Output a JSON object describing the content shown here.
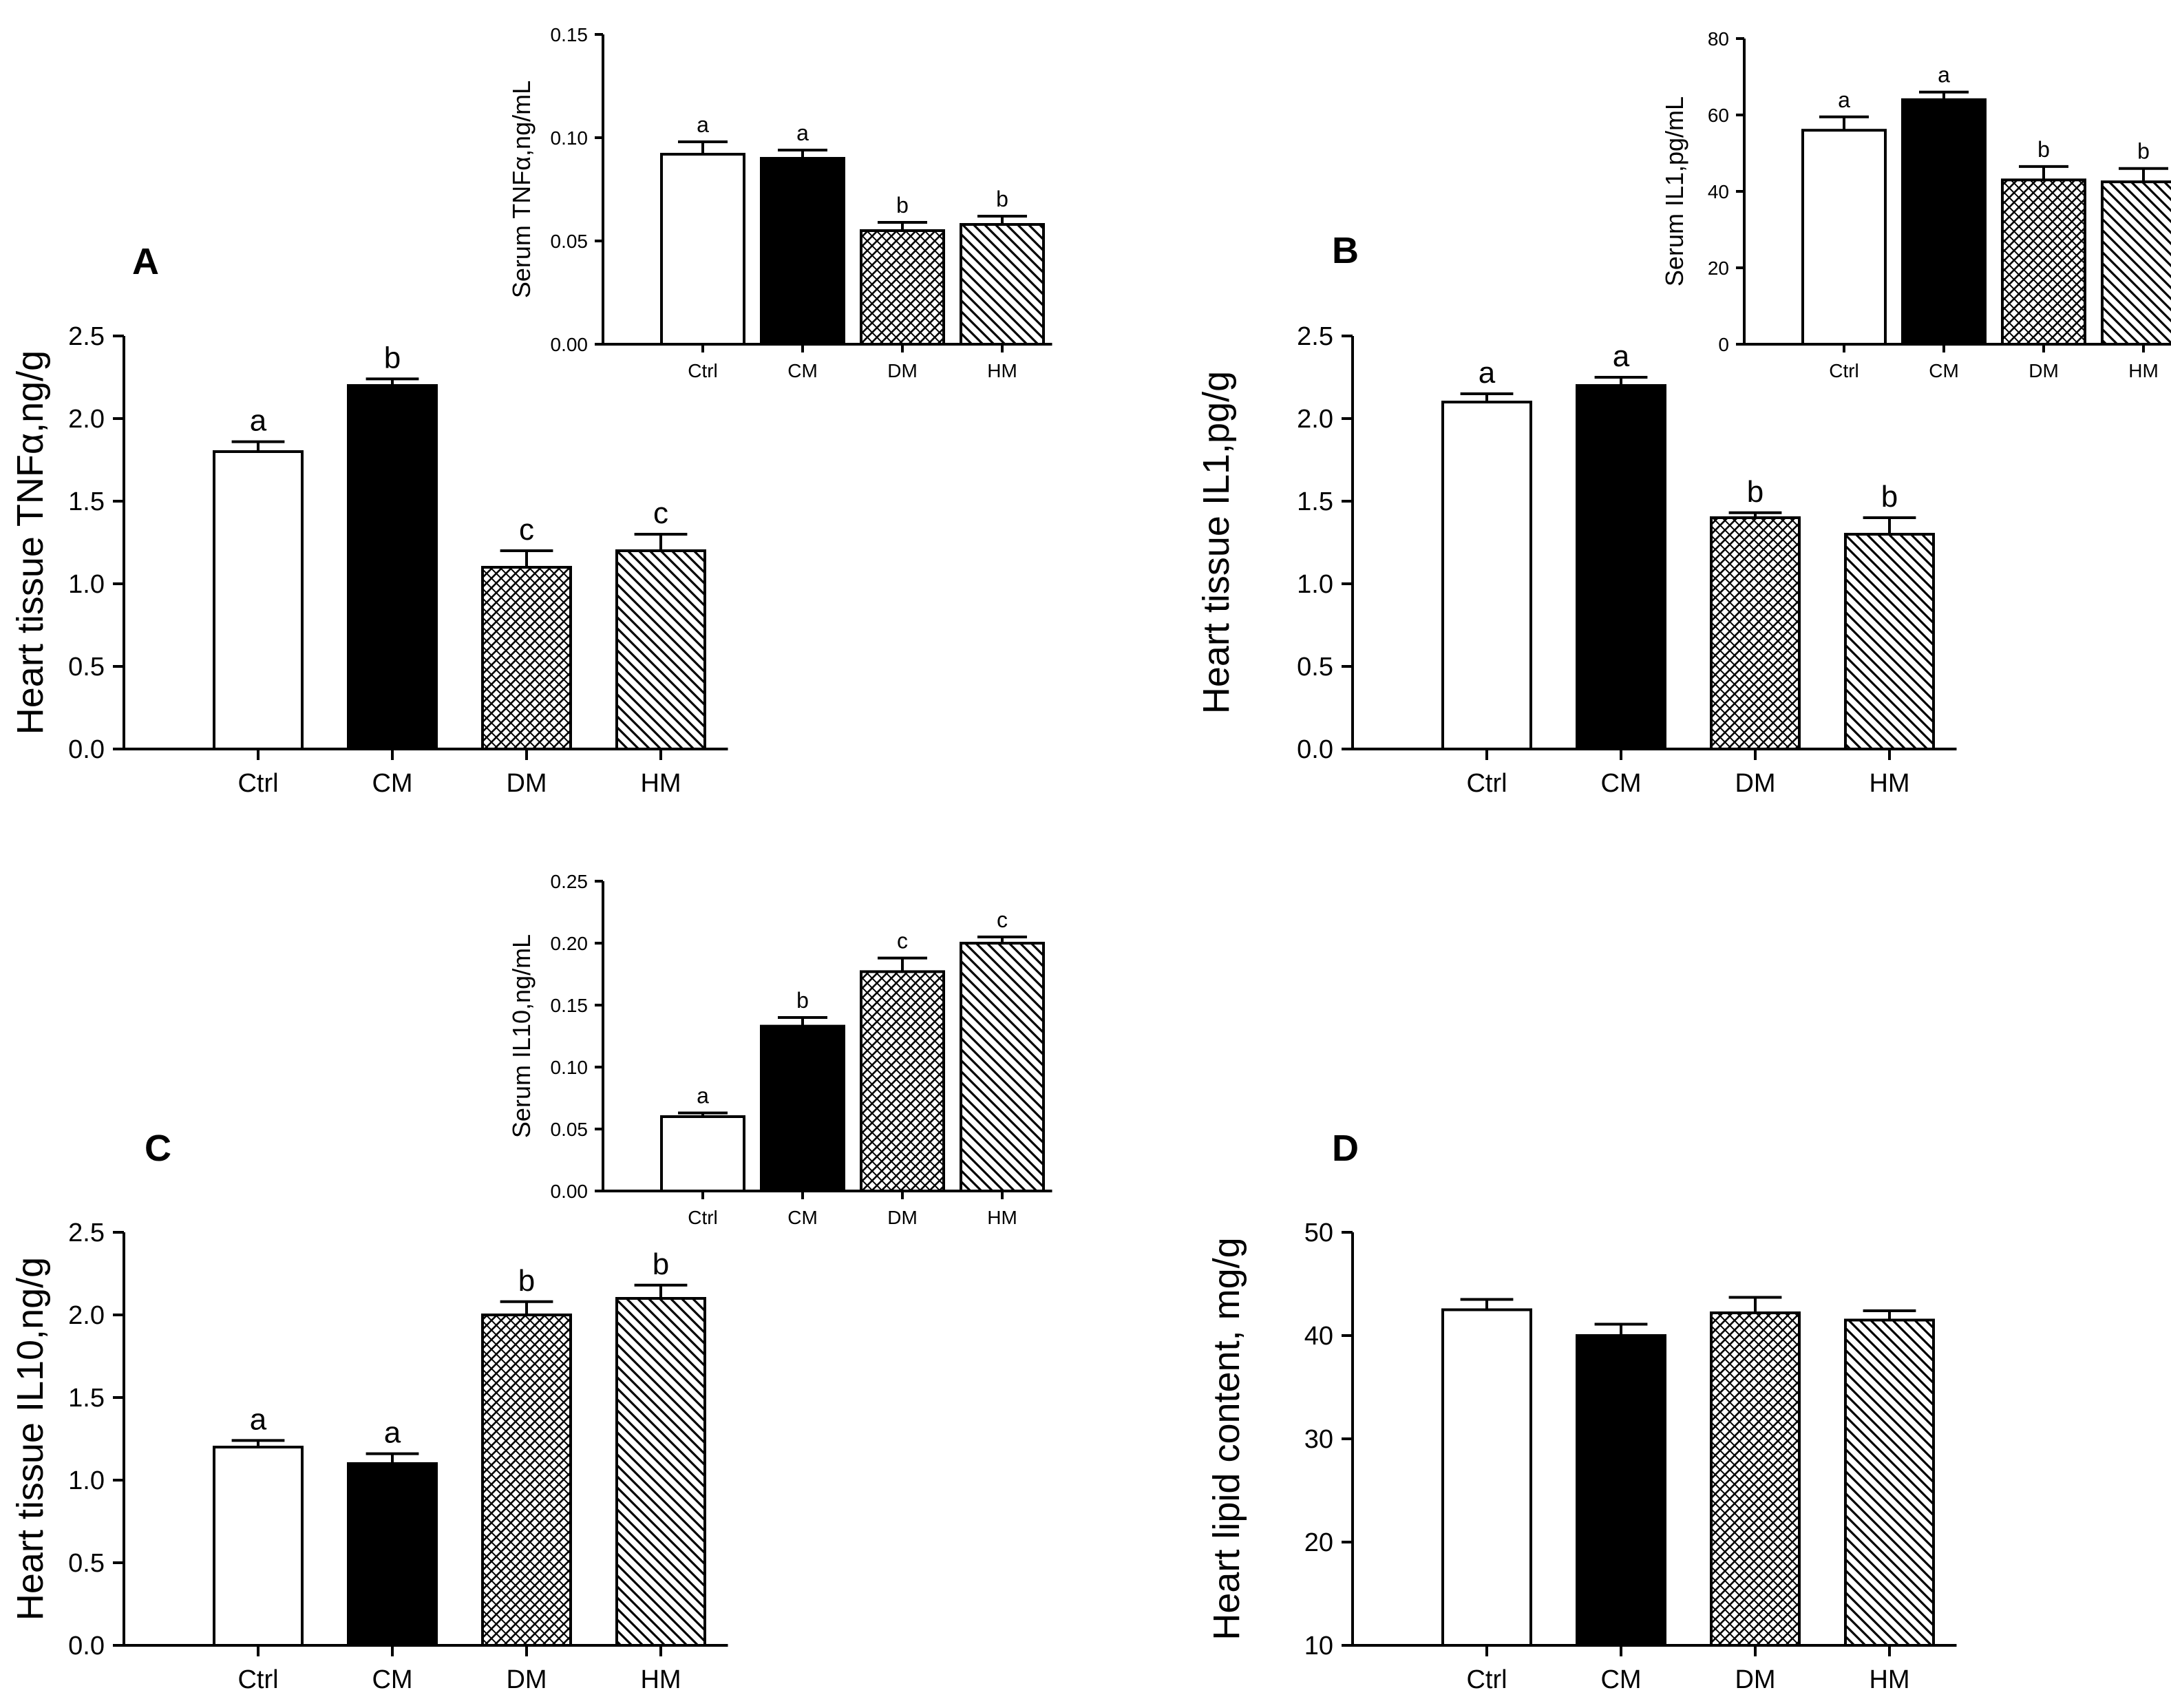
{
  "chart_data": [
    {
      "id": "A-main",
      "panel": "A",
      "type": "bar",
      "ylabel": "Heart tissue TNFα,ng/g",
      "categories": [
        "Ctrl",
        "CM",
        "DM",
        "HM"
      ],
      "values": [
        1.8,
        2.2,
        1.1,
        1.2
      ],
      "errors": [
        0.06,
        0.04,
        0.1,
        0.1
      ],
      "letters": [
        "a",
        "b",
        "c",
        "c"
      ],
      "ylim": [
        0,
        2.5
      ],
      "yticks": [
        "0.0",
        "0.5",
        "1.0",
        "1.5",
        "2.0",
        "2.5"
      ]
    },
    {
      "id": "A-inset",
      "panel": "A",
      "type": "bar",
      "ylabel": "Serum TNFα,ng/mL",
      "categories": [
        "Ctrl",
        "CM",
        "DM",
        "HM"
      ],
      "values": [
        0.092,
        0.09,
        0.055,
        0.058
      ],
      "errors": [
        0.006,
        0.004,
        0.004,
        0.004
      ],
      "letters": [
        "a",
        "a",
        "b",
        "b"
      ],
      "ylim": [
        0,
        0.15
      ],
      "yticks": [
        "0.00",
        "0.05",
        "0.10",
        "0.15"
      ]
    },
    {
      "id": "B-main",
      "panel": "B",
      "type": "bar",
      "ylabel": "Heart tissue IL1,pg/g",
      "categories": [
        "Ctrl",
        "CM",
        "DM",
        "HM"
      ],
      "values": [
        2.1,
        2.2,
        1.4,
        1.3
      ],
      "errors": [
        0.05,
        0.05,
        0.03,
        0.1
      ],
      "letters": [
        "a",
        "a",
        "b",
        "b"
      ],
      "ylim": [
        0,
        2.5
      ],
      "yticks": [
        "0.0",
        "0.5",
        "1.0",
        "1.5",
        "2.0",
        "2.5"
      ]
    },
    {
      "id": "B-inset",
      "panel": "B",
      "type": "bar",
      "ylabel": "Serum IL1,pg/mL",
      "categories": [
        "Ctrl",
        "CM",
        "DM",
        "HM"
      ],
      "values": [
        56,
        64,
        43,
        42.5
      ],
      "errors": [
        3.5,
        2,
        3.5,
        3.5
      ],
      "letters": [
        "a",
        "a",
        "b",
        "b"
      ],
      "ylim": [
        0,
        80
      ],
      "yticks": [
        "0",
        "20",
        "40",
        "60",
        "80"
      ]
    },
    {
      "id": "C-main",
      "panel": "C",
      "type": "bar",
      "ylabel": "Heart tissue IL10,ng/g",
      "categories": [
        "Ctrl",
        "CM",
        "DM",
        "HM"
      ],
      "values": [
        1.2,
        1.1,
        2.0,
        2.1
      ],
      "errors": [
        0.04,
        0.06,
        0.08,
        0.08
      ],
      "letters": [
        "a",
        "a",
        "b",
        "b"
      ],
      "ylim": [
        0,
        2.5
      ],
      "yticks": [
        "0.0",
        "0.5",
        "1.0",
        "1.5",
        "2.0",
        "2.5"
      ]
    },
    {
      "id": "C-inset",
      "panel": "C",
      "type": "bar",
      "ylabel": "Serum IL10,ng/mL",
      "categories": [
        "Ctrl",
        "CM",
        "DM",
        "HM"
      ],
      "values": [
        0.06,
        0.133,
        0.177,
        0.2
      ],
      "errors": [
        0.003,
        0.007,
        0.011,
        0.005
      ],
      "letters": [
        "a",
        "b",
        "c",
        "c"
      ],
      "ylim": [
        0,
        0.25
      ],
      "yticks": [
        "0.00",
        "0.05",
        "0.10",
        "0.15",
        "0.20",
        "0.25"
      ]
    },
    {
      "id": "D-main",
      "panel": "D",
      "type": "bar",
      "ylabel": "Heart lipid content, mg/g",
      "categories": [
        "Ctrl",
        "CM",
        "DM",
        "HM"
      ],
      "values": [
        42.5,
        40,
        42.2,
        41.5
      ],
      "errors": [
        1,
        1.1,
        1.5,
        0.9
      ],
      "letters": [],
      "ylim": [
        10,
        50
      ],
      "yticks": [
        "10",
        "20",
        "30",
        "40",
        "50"
      ]
    }
  ],
  "panel_letters": [
    "A",
    "B",
    "C",
    "D"
  ],
  "bar_fills": [
    "white",
    "black",
    "crosshatch",
    "diagonal"
  ],
  "colors": {
    "ink": "#000000",
    "paper": "#ffffff"
  }
}
